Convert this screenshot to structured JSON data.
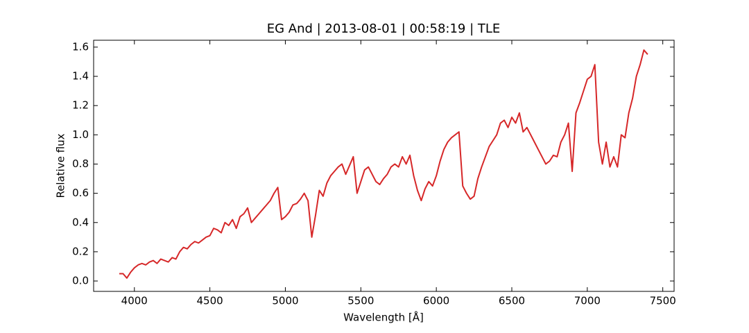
{
  "chart_data": {
    "type": "line",
    "title": "EG And | 2013-08-01 | 00:58:19 | TLE",
    "xlabel": "Wavelength [Å]",
    "ylabel": "Relative flux",
    "xlim": [
      3730,
      7575
    ],
    "ylim": [
      -0.071,
      1.647
    ],
    "xticks": [
      4000,
      4500,
      5000,
      5500,
      6000,
      6500,
      7000,
      7500
    ],
    "yticks": [
      {
        "value": 0,
        "label": "0.0"
      },
      0.2,
      0.4,
      0.6,
      0.8,
      {
        "value": 1,
        "label": "1.0"
      },
      1.2,
      1.4,
      1.6
    ],
    "x": [
      3900,
      3925,
      3950,
      3975,
      4000,
      4025,
      4050,
      4075,
      4100,
      4125,
      4150,
      4175,
      4200,
      4225,
      4250,
      4275,
      4300,
      4325,
      4350,
      4375,
      4400,
      4425,
      4450,
      4475,
      4500,
      4525,
      4550,
      4575,
      4600,
      4625,
      4650,
      4675,
      4700,
      4725,
      4750,
      4775,
      4800,
      4825,
      4850,
      4875,
      4900,
      4925,
      4950,
      4975,
      5000,
      5025,
      5050,
      5075,
      5100,
      5125,
      5150,
      5175,
      5200,
      5225,
      5250,
      5275,
      5300,
      5325,
      5350,
      5375,
      5400,
      5425,
      5450,
      5475,
      5500,
      5525,
      5550,
      5575,
      5600,
      5625,
      5650,
      5675,
      5700,
      5725,
      5750,
      5775,
      5800,
      5825,
      5850,
      5875,
      5900,
      5925,
      5950,
      5975,
      6000,
      6025,
      6050,
      6075,
      6100,
      6125,
      6150,
      6175,
      6200,
      6225,
      6250,
      6275,
      6300,
      6325,
      6350,
      6375,
      6400,
      6425,
      6450,
      6475,
      6500,
      6525,
      6550,
      6575,
      6600,
      6625,
      6650,
      6675,
      6700,
      6725,
      6750,
      6775,
      6800,
      6825,
      6850,
      6875,
      6900,
      6925,
      6950,
      6975,
      7000,
      7025,
      7050,
      7075,
      7100,
      7125,
      7150,
      7175,
      7200,
      7225,
      7250,
      7275,
      7300,
      7325,
      7350,
      7375,
      7400
    ],
    "series": [
      {
        "name": "EG And",
        "color": "#d62728",
        "values": [
          0.05,
          0.05,
          0.02,
          0.06,
          0.09,
          0.11,
          0.12,
          0.11,
          0.13,
          0.14,
          0.12,
          0.15,
          0.14,
          0.13,
          0.16,
          0.15,
          0.2,
          0.23,
          0.22,
          0.25,
          0.27,
          0.26,
          0.28,
          0.3,
          0.31,
          0.36,
          0.35,
          0.33,
          0.4,
          0.38,
          0.42,
          0.36,
          0.44,
          0.46,
          0.5,
          0.4,
          0.43,
          0.46,
          0.49,
          0.52,
          0.55,
          0.6,
          0.64,
          0.42,
          0.44,
          0.47,
          0.52,
          0.53,
          0.56,
          0.6,
          0.55,
          0.3,
          0.45,
          0.62,
          0.58,
          0.67,
          0.72,
          0.75,
          0.78,
          0.8,
          0.73,
          0.79,
          0.85,
          0.6,
          0.68,
          0.76,
          0.78,
          0.73,
          0.68,
          0.66,
          0.7,
          0.73,
          0.78,
          0.8,
          0.78,
          0.85,
          0.8,
          0.86,
          0.72,
          0.62,
          0.55,
          0.63,
          0.68,
          0.65,
          0.72,
          0.82,
          0.9,
          0.95,
          0.98,
          1.0,
          1.02,
          0.65,
          0.6,
          0.56,
          0.58,
          0.7,
          0.78,
          0.85,
          0.92,
          0.96,
          1.0,
          1.08,
          1.1,
          1.05,
          1.12,
          1.08,
          1.15,
          1.02,
          1.05,
          1.0,
          0.95,
          0.9,
          0.85,
          0.8,
          0.82,
          0.86,
          0.85,
          0.95,
          1.0,
          1.08,
          0.75,
          1.15,
          1.22,
          1.3,
          1.38,
          1.4,
          1.48,
          0.95,
          0.8,
          0.95,
          0.78,
          0.85,
          0.78,
          1.0,
          0.98,
          1.15,
          1.25,
          1.4,
          1.48,
          1.58,
          1.55
        ]
      }
    ]
  }
}
